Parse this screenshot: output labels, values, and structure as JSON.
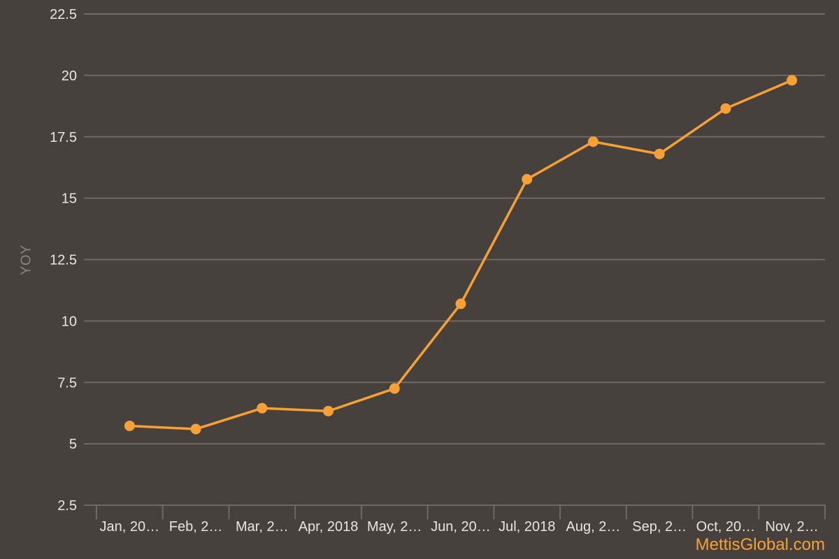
{
  "chart_data": {
    "type": "line",
    "title": "",
    "xlabel": "",
    "ylabel": "YOY",
    "categories": [
      "Jan, 20…",
      "Feb, 2…",
      "Mar, 2…",
      "Apr, 2018",
      "May, 2…",
      "Jun, 20…",
      "Jul, 2018",
      "Aug, 2…",
      "Sep, 2…",
      "Oct, 20…",
      "Nov, 2…"
    ],
    "series": [
      {
        "values": [
          5.73,
          5.6,
          6.45,
          6.33,
          7.25,
          10.7,
          15.77,
          17.3,
          16.8,
          18.65,
          19.8
        ],
        "color": "#f7a035"
      }
    ],
    "ylim": [
      2.5,
      22.5
    ],
    "yticks": [
      "2.5",
      "5",
      "7.5",
      "10",
      "12.5",
      "15",
      "17.5",
      "20",
      "22.5"
    ],
    "grid": true,
    "legend": "none"
  },
  "credit": "MettisGlobal.com",
  "colors": {
    "background": "#47413e",
    "grid": "#6e6966",
    "tick_text": "#e8e4e1",
    "axis_title": "#8a8481",
    "accent": "#f7a035"
  }
}
